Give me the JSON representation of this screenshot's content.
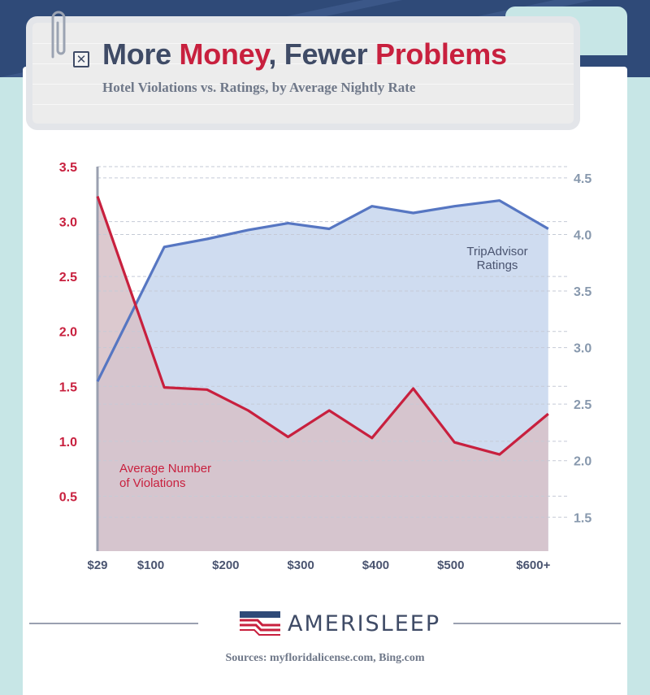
{
  "header": {
    "title_part1": "More ",
    "title_red1": "Money",
    "title_part2": ", ",
    "title_part3": "Fewer ",
    "title_red2": "Problems",
    "subtitle": "Hotel Violations vs. Ratings, by Average Nightly Rate"
  },
  "brand": {
    "name": "AMERISLEEP"
  },
  "sources": "Sources: myfloridalicense.com, Bing.com",
  "colors": {
    "violations_line": "#c8203e",
    "violations_fill": "#d7c2c8",
    "ratings_line": "#5676c2",
    "ratings_fill": "#cfdcf0",
    "left_axis_text": "#c8203e",
    "right_axis_text": "#8798ad",
    "axis_text": "#4a5470"
  },
  "chart_data": {
    "type": "line",
    "x_tick_labels": [
      "$29",
      "$100",
      "$200",
      "$300",
      "$400",
      "$500",
      "$600+"
    ],
    "x_ticks": [
      29,
      100,
      200,
      300,
      400,
      500,
      610
    ],
    "xlim": [
      29,
      640
    ],
    "left_axis": {
      "ticks": [
        "3.5",
        "3.0",
        "2.5",
        "2.0",
        "1.5",
        "1.0",
        "0.5"
      ],
      "ylim": [
        0,
        3.5
      ]
    },
    "right_axis": {
      "ticks": [
        "4.5",
        "4.0",
        "3.5",
        "3.0",
        "2.5",
        "2.0",
        "1.5"
      ],
      "ylim": [
        1.2,
        4.6
      ]
    },
    "series": [
      {
        "name": "Average Number of Violations",
        "axis": "left",
        "x": [
          29,
          118,
          175,
          230,
          283,
          338,
          395,
          450,
          505,
          565,
          630
        ],
        "y": [
          3.23,
          1.49,
          1.47,
          1.28,
          1.04,
          1.28,
          1.03,
          1.48,
          0.99,
          0.88,
          1.25
        ]
      },
      {
        "name": "TripAdvisor Ratings",
        "axis": "right",
        "x": [
          29,
          118,
          175,
          230,
          283,
          338,
          395,
          450,
          505,
          565,
          630
        ],
        "y": [
          2.7,
          3.89,
          3.96,
          4.04,
          4.1,
          4.05,
          4.25,
          4.19,
          4.25,
          4.3,
          4.05
        ]
      }
    ],
    "label_ratings": [
      "TripAdvisor",
      "Ratings"
    ],
    "label_violations": [
      "Average Number",
      "of Violations"
    ],
    "grid": "dashed horizontal"
  }
}
